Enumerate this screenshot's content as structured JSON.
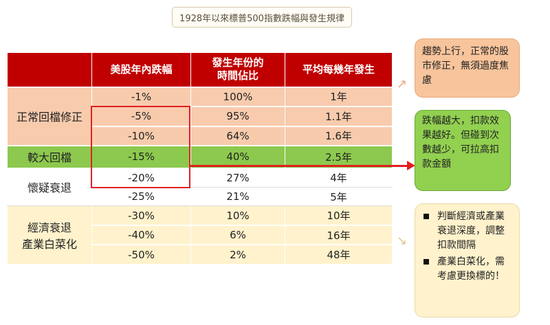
{
  "title": "1928年以來標普500指數跌幅與發生規律",
  "table": {
    "headers": [
      "",
      "美股年內跌幅",
      "發生年份的\n時間佔比",
      "平均每幾年發生"
    ],
    "header_lines": {
      "h1": "美股年內跌幅",
      "h2a": "發生年份的",
      "h2b": "時間佔比",
      "h3": "平均每幾年發生"
    },
    "categories": {
      "normal": "正常回檔修正",
      "large": "較大回檔",
      "doubt": "懷疑衰退",
      "rec_a": "經濟衰退",
      "rec_b": "產業白菜化"
    },
    "rows": [
      {
        "decline": "-1%",
        "share": "100%",
        "every": "1年"
      },
      {
        "decline": "-5%",
        "share": "95%",
        "every": "1.1年"
      },
      {
        "decline": "-10%",
        "share": "64%",
        "every": "1.6年"
      },
      {
        "decline": "-15%",
        "share": "40%",
        "every": "2.5年"
      },
      {
        "decline": "-20%",
        "share": "27%",
        "every": "4年"
      },
      {
        "decline": "-25%",
        "share": "21%",
        "every": "5年"
      },
      {
        "decline": "-30%",
        "share": "10%",
        "every": "10年"
      },
      {
        "decline": "-40%",
        "share": "6%",
        "every": "16年"
      },
      {
        "decline": "-50%",
        "share": "2%",
        "every": "48年"
      }
    ]
  },
  "notes": {
    "n1": "趨勢上行，正常的股市修正，無須過度焦慮",
    "n2": "跌幅越大，扣款效果越好。但碰到次數越少，可拉高扣款金額",
    "n3_b1": "判斷經濟或產業衰退深度，調整扣款間隔",
    "n3_b2": "產業白菜化，需考慮更換標的！"
  },
  "colors": {
    "header": "#c00000",
    "normal": "#f8cbad",
    "large": "#8cc94e",
    "doubt": "#ffffff",
    "recession": "#fff2cc",
    "highlight": "#e02020"
  }
}
